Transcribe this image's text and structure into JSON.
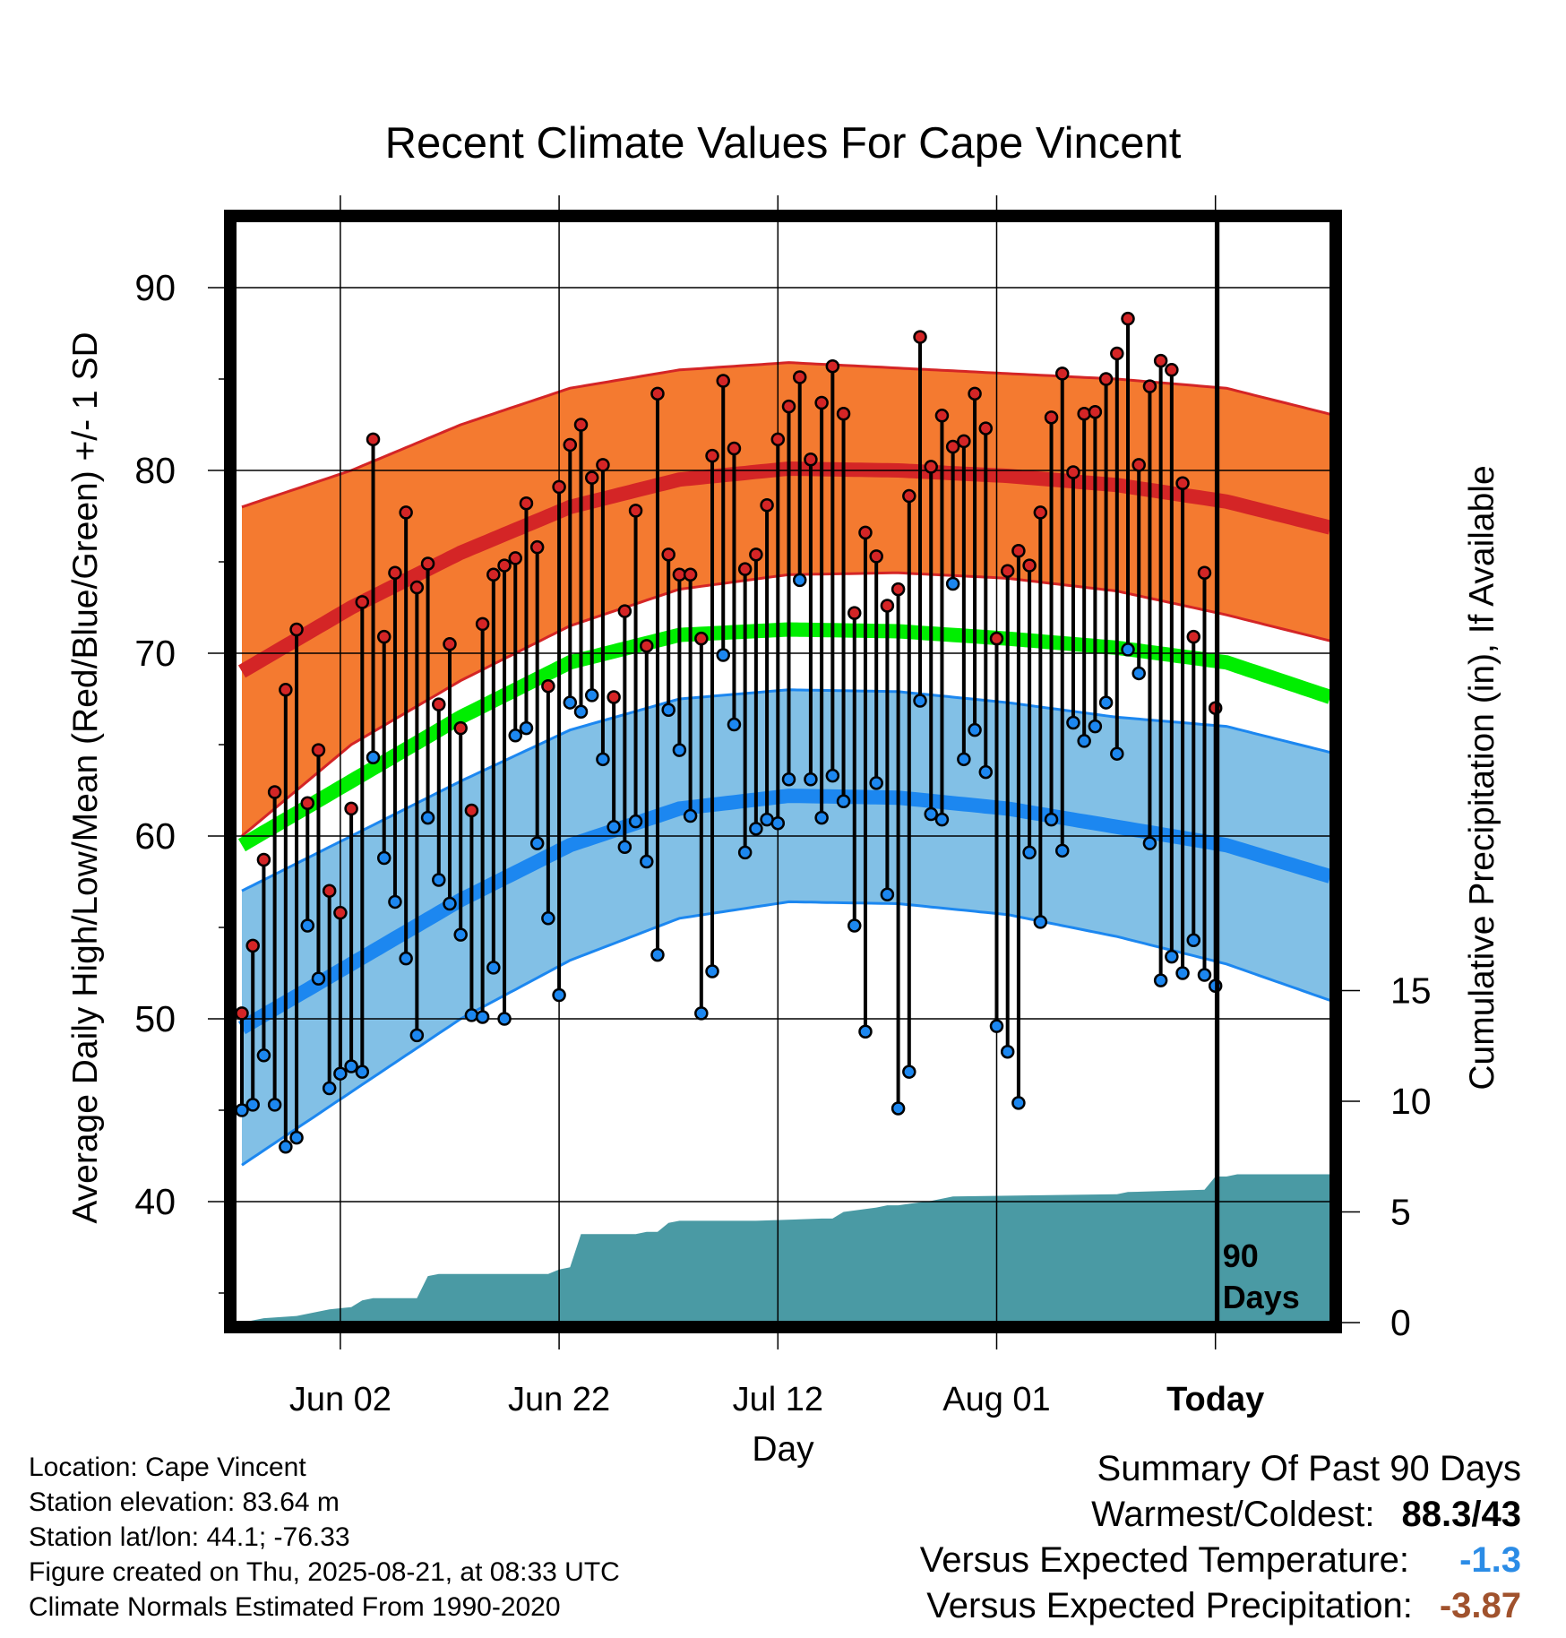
{
  "chart_data": {
    "type": "line",
    "title": "Recent Climate Values For Cape Vincent",
    "xlabel": "Day",
    "ylabel": "Average Daily High/Low/Mean (Red/Blue/Green) +/- 1 SD",
    "y2label": "Cumulative Precipitation (in), If Available",
    "x_tick_labels": [
      "Jun 02",
      "Jun 22",
      "Jul 12",
      "Aug 01",
      "Today"
    ],
    "y_tick_labels": [
      "40",
      "50",
      "60",
      "70",
      "80",
      "90"
    ],
    "y2_tick_labels": [
      "0",
      "5",
      "10",
      "15"
    ],
    "ylim": [
      33,
      96
    ],
    "y2lim": [
      0,
      15
    ],
    "grid": true,
    "marker_label": "90 Days",
    "colors": {
      "high_band": "#f47a30",
      "high_mean": "#d42526",
      "low_band": "#82c0e6",
      "low_mean": "#1c87f0",
      "mean": "#00ee00",
      "precip": "#4a9aa4",
      "high_dot": "#d42526",
      "low_dot": "#1c87f0"
    },
    "normals": {
      "days": [
        0,
        10,
        20,
        30,
        40,
        50,
        60,
        70,
        80,
        90,
        100
      ],
      "high_mean": [
        69.0,
        72.5,
        75.5,
        78.0,
        79.5,
        80.1,
        80.0,
        79.7,
        79.2,
        78.3,
        76.8
      ],
      "high_sd": [
        9.0,
        7.5,
        7.0,
        6.5,
        6.0,
        5.8,
        5.6,
        5.6,
        5.8,
        6.2,
        6.2
      ],
      "low_mean": [
        49.5,
        53.0,
        56.5,
        59.5,
        61.5,
        62.2,
        62.1,
        61.5,
        60.5,
        59.5,
        57.7
      ],
      "low_sd": [
        7.5,
        7.0,
        6.5,
        6.3,
        6.0,
        5.8,
        5.8,
        5.8,
        6.0,
        6.5,
        6.8
      ],
      "mean": [
        59.5,
        63.0,
        66.5,
        69.5,
        71.0,
        71.3,
        71.2,
        70.8,
        70.3,
        69.5,
        67.5
      ]
    },
    "series": [
      {
        "name": "High",
        "values": [
          50.3,
          54.0,
          58.7,
          62.4,
          68.0,
          71.3,
          61.8,
          64.7,
          57.0,
          55.8,
          61.5,
          72.8,
          81.7,
          70.9,
          74.4,
          77.7,
          73.6,
          74.9,
          67.2,
          70.5,
          65.9,
          61.4,
          71.6,
          74.3,
          74.8,
          75.2,
          78.2,
          75.8,
          68.2,
          79.1,
          81.4,
          82.5,
          79.6,
          80.3,
          67.6,
          72.3,
          77.8,
          70.4,
          84.2,
          75.4,
          74.3,
          74.3,
          70.8,
          80.8,
          84.9,
          81.2,
          74.6,
          75.4,
          78.1,
          81.7,
          83.5,
          85.1,
          80.6,
          83.7,
          85.7,
          83.1,
          72.2,
          76.6,
          75.3,
          72.6,
          73.5,
          78.6,
          87.3,
          80.2,
          83.0,
          81.3,
          81.6,
          84.2,
          82.3,
          70.8,
          74.5,
          75.6,
          74.8,
          77.7,
          82.9,
          85.3,
          79.9,
          83.1,
          83.2,
          85.0,
          86.4,
          88.3,
          80.3,
          84.6,
          86.0,
          85.5,
          79.3,
          70.9,
          74.4,
          67.0
        ]
      },
      {
        "name": "Low",
        "values": [
          45.0,
          45.3,
          48.0,
          45.3,
          43.0,
          43.5,
          55.1,
          52.2,
          46.2,
          47.0,
          47.4,
          47.1,
          64.3,
          58.8,
          56.4,
          53.3,
          49.1,
          61.0,
          57.6,
          56.3,
          54.6,
          50.2,
          50.1,
          52.8,
          50.0,
          65.5,
          65.9,
          59.6,
          55.5,
          51.3,
          67.3,
          66.8,
          67.7,
          64.2,
          60.5,
          59.4,
          60.8,
          58.6,
          53.5,
          66.9,
          64.7,
          61.1,
          50.3,
          52.6,
          69.9,
          66.1,
          59.1,
          60.4,
          60.9,
          60.7,
          63.1,
          74.0,
          63.1,
          61.0,
          63.3,
          61.9,
          55.1,
          49.3,
          62.9,
          56.8,
          45.1,
          47.1,
          67.4,
          61.2,
          60.9,
          73.8,
          64.2,
          65.8,
          63.5,
          49.6,
          48.2,
          45.4,
          59.1,
          55.3,
          60.9,
          59.2,
          66.2,
          65.2,
          66.0,
          67.3,
          64.5,
          70.2,
          68.9,
          59.6,
          52.1,
          53.4,
          52.5,
          54.3,
          52.4,
          51.8
        ]
      }
    ],
    "cumulative_precipitation": {
      "days": [
        0,
        2,
        5,
        8,
        10,
        11,
        12,
        16,
        17,
        18,
        19,
        28,
        29,
        30,
        31,
        36,
        37,
        38,
        39,
        40,
        46,
        47,
        53,
        54,
        55,
        58,
        59,
        60,
        63,
        64,
        65,
        80,
        81,
        88,
        89,
        90,
        91,
        92
      ],
      "values": [
        0.0,
        0.2,
        0.3,
        0.6,
        0.7,
        1.0,
        1.1,
        1.1,
        2.1,
        2.2,
        2.2,
        2.2,
        2.4,
        2.5,
        4.0,
        4.0,
        4.1,
        4.1,
        4.5,
        4.6,
        4.6,
        4.6,
        4.7,
        4.7,
        5.0,
        5.2,
        5.3,
        5.3,
        5.5,
        5.6,
        5.7,
        5.8,
        5.9,
        6.0,
        6.6,
        6.6,
        6.7,
        6.7
      ]
    }
  },
  "info": {
    "location": "Location: Cape Vincent",
    "elevation": "Station elevation: 83.64 m",
    "latlon": "Station lat/lon: 44.1; -76.33",
    "created": "Figure created on Thu, 2025-08-21, at 08:33 UTC",
    "normals": "Climate Normals Estimated From 1990-2020"
  },
  "summary": {
    "title": "Summary Of Past 90 Days",
    "warmest_label": "Warmest/Coldest:",
    "warmest_value": "88.3/43",
    "temp_label": "Versus Expected Temperature:",
    "temp_value": "-1.3",
    "temp_color": "#2b8ce6",
    "precip_label": "Versus Expected Precipitation:",
    "precip_value": "-3.87",
    "precip_color": "#a0522d"
  }
}
